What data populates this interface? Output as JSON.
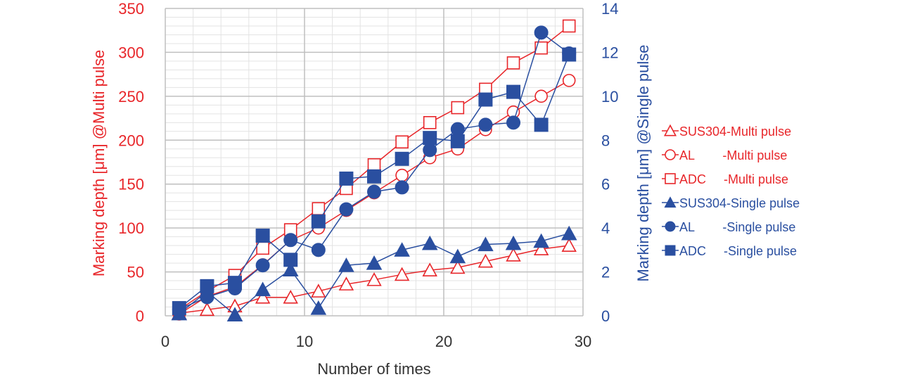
{
  "chart_data": {
    "type": "line",
    "x": [
      1,
      3,
      5,
      7,
      9,
      11,
      13,
      15,
      17,
      19,
      21,
      23,
      25,
      27,
      29
    ],
    "xlabel": "Number of times",
    "xlim": [
      0,
      30
    ],
    "xticks": [
      0,
      10,
      20,
      30
    ],
    "xtick_labels": [
      "0",
      "10",
      "20",
      "30"
    ],
    "ylabel_left": "Marking depth [μm] @Multi pulse",
    "ylim_left": [
      0,
      350
    ],
    "yticks_left": [
      0,
      50,
      100,
      150,
      200,
      250,
      300,
      350
    ],
    "ytick_labels_left": [
      "0",
      "50",
      "100",
      "150",
      "200",
      "250",
      "300",
      "350"
    ],
    "ylabel_right": "Marking depth [μm] @Single pulse",
    "ylim_right": [
      0,
      14
    ],
    "yticks_right": [
      0,
      2,
      4,
      6,
      8,
      10,
      12,
      14
    ],
    "ytick_labels_right": [
      "0",
      "2",
      "4",
      "6",
      "8",
      "10",
      "12",
      "14"
    ],
    "grid": true,
    "legend_position": "right",
    "colors": {
      "multi": "#e8262a",
      "single": "#2a4fa0",
      "grid_major": "#bfbfbf",
      "grid_minor": "#e3e3e3"
    },
    "series": [
      {
        "name": "SUS304-Multi pulse",
        "axis": "left",
        "marker": "triangle-open",
        "color": "#e8262a",
        "values": [
          3,
          7,
          11,
          21,
          21,
          28,
          36,
          41,
          47,
          52,
          55,
          62,
          69,
          76,
          80
        ]
      },
      {
        "name": "AL        -Multi pulse",
        "axis": "left",
        "marker": "circle-open",
        "color": "#e8262a",
        "values": [
          2,
          22,
          33,
          58,
          86,
          100,
          120,
          140,
          160,
          180,
          190,
          212,
          232,
          250,
          268
        ]
      },
      {
        "name": "ADC     -Multi pulse",
        "axis": "left",
        "marker": "square-open",
        "color": "#e8262a",
        "values": [
          7,
          28,
          46,
          77,
          98,
          122,
          145,
          172,
          198,
          220,
          237,
          258,
          288,
          305,
          330
        ]
      },
      {
        "name": "SUS304-Single pulse",
        "axis": "right",
        "marker": "triangle-filled",
        "color": "#2a4fa0",
        "values": [
          0.1,
          1.1,
          0.05,
          1.2,
          2.1,
          0.35,
          2.3,
          2.4,
          3.0,
          3.3,
          2.7,
          3.25,
          3.3,
          3.4,
          3.75
        ]
      },
      {
        "name": "AL        -Single pulse",
        "axis": "right",
        "marker": "circle-filled",
        "color": "#2a4fa0",
        "values": [
          0.3,
          0.85,
          1.25,
          2.3,
          3.45,
          3.0,
          4.85,
          5.65,
          5.85,
          7.55,
          8.5,
          8.7,
          8.8,
          12.9,
          11.95
        ]
      },
      {
        "name": "ADC     -Single pulse",
        "axis": "right",
        "marker": "square-filled",
        "color": "#2a4fa0",
        "values": [
          0.35,
          1.35,
          1.5,
          3.65,
          2.55,
          4.3,
          6.25,
          6.35,
          7.15,
          8.1,
          7.95,
          9.85,
          10.2,
          8.7,
          11.9
        ]
      }
    ]
  }
}
